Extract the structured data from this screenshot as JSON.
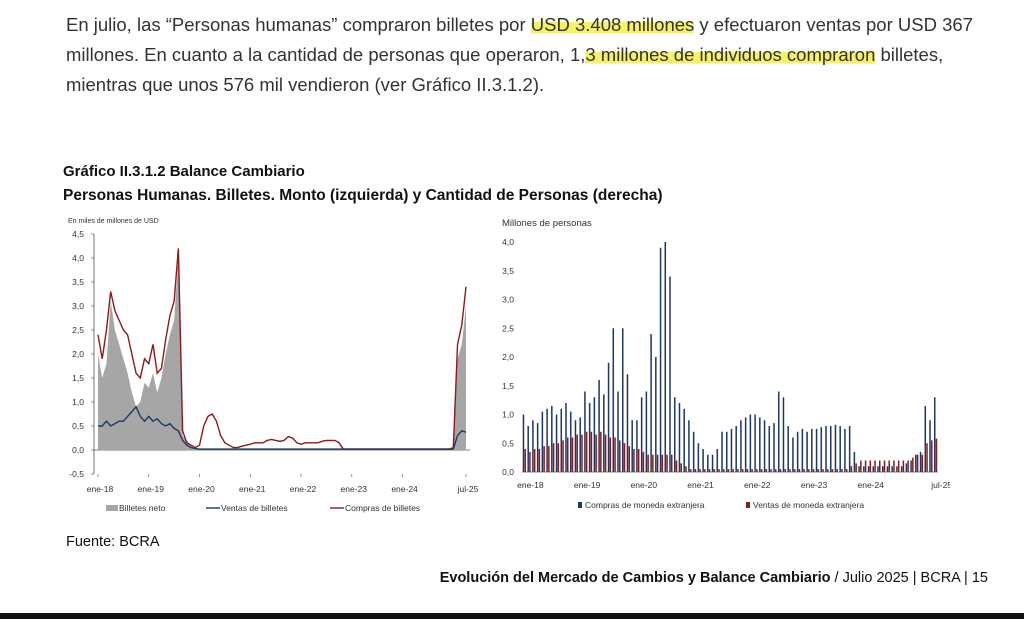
{
  "paragraph": {
    "part1": "En julio, las “Personas humanas” compraron billetes por ",
    "hl1": "USD 3.408 millones",
    "part2": " y efectuaron ventas por USD 367 millones. En cuanto a la cantidad de personas que operaron, 1,",
    "hl2": "3 millones de individuos compraron",
    "part3": " billetes, mientras que unos 576 mil vendieron (ver Gráfico II.3.1.2)."
  },
  "figure": {
    "title": "Gráfico II.3.1.2 Balance Cambiario",
    "subtitle": "Personas Humanas. Billetes. Monto (izquierda) y Cantidad de Personas (derecha)"
  },
  "source": "Fuente: BCRA",
  "footer": {
    "bold": "Evolución del Mercado de Cambios y Balance Cambiario",
    "rest": " / Julio 2025 | BCRA | 15"
  },
  "chart_data": [
    {
      "type": "area",
      "ylabel": "En miles de millones de USD",
      "ylim": [
        -0.5,
        4.5
      ],
      "yticks": [
        "4,5",
        "4,0",
        "3,5",
        "3,0",
        "2,5",
        "2,0",
        "1,5",
        "1,0",
        "0,5",
        "0,0",
        "-0,5"
      ],
      "x_ticks": [
        "ene-18",
        "ene-19",
        "ene-20",
        "ene-21",
        "ene-22",
        "ene-23",
        "ene-24",
        "jul-25"
      ],
      "colors": {
        "billetes_neto": "#a6a6a6",
        "ventas": "#1f3864",
        "compras": "#8b1a1a"
      },
      "series": [
        {
          "name": "Billetes neto",
          "values": [
            2.0,
            1.5,
            1.8,
            3.1,
            2.5,
            2.2,
            1.9,
            1.6,
            1.2,
            0.9,
            1.0,
            1.4,
            1.3,
            1.6,
            1.2,
            1.5,
            2.0,
            2.4,
            2.7,
            4.0,
            0.3,
            0.2,
            0.1,
            0.0,
            0.0,
            0.0,
            0.0,
            0.0,
            0.0,
            0.0,
            0.0,
            0.0,
            0.0,
            0.0,
            0.0,
            0.0,
            0.0,
            0.0,
            0.0,
            0.0,
            0.0,
            0.0,
            0.0,
            0.0,
            0.0,
            0.0,
            0.0,
            0.0,
            0.0,
            0.0,
            0.0,
            0.0,
            0.0,
            0.0,
            0.0,
            0.0,
            0.0,
            0.0,
            0.0,
            0.0,
            0.0,
            0.0,
            0.0,
            0.0,
            0.0,
            0.0,
            0.0,
            0.0,
            0.0,
            0.0,
            0.0,
            0.0,
            0.0,
            0.0,
            0.0,
            0.0,
            0.0,
            0.0,
            0.0,
            0.0,
            0.0,
            0.0,
            0.0,
            0.0,
            0.0,
            1.9,
            2.2,
            3.0
          ]
        },
        {
          "name": "Ventas de billetes",
          "values": [
            0.5,
            0.5,
            0.6,
            0.5,
            0.55,
            0.6,
            0.6,
            0.7,
            0.8,
            0.9,
            0.7,
            0.6,
            0.7,
            0.6,
            0.65,
            0.55,
            0.5,
            0.55,
            0.45,
            0.4,
            0.2,
            0.1,
            0.05,
            0.03,
            0.02,
            0.02,
            0.02,
            0.02,
            0.02,
            0.02,
            0.02,
            0.02,
            0.02,
            0.02,
            0.02,
            0.02,
            0.02,
            0.02,
            0.02,
            0.02,
            0.02,
            0.02,
            0.02,
            0.02,
            0.02,
            0.02,
            0.02,
            0.02,
            0.02,
            0.02,
            0.02,
            0.02,
            0.02,
            0.02,
            0.02,
            0.02,
            0.02,
            0.02,
            0.02,
            0.02,
            0.02,
            0.02,
            0.02,
            0.02,
            0.02,
            0.02,
            0.02,
            0.02,
            0.02,
            0.02,
            0.02,
            0.02,
            0.02,
            0.02,
            0.02,
            0.02,
            0.02,
            0.02,
            0.02,
            0.02,
            0.02,
            0.02,
            0.02,
            0.02,
            0.02,
            0.3,
            0.4,
            0.37
          ]
        },
        {
          "name": "Compras de billetes",
          "values": [
            2.4,
            1.9,
            2.5,
            3.3,
            2.9,
            2.7,
            2.5,
            2.4,
            2.0,
            1.6,
            1.5,
            1.9,
            1.8,
            2.2,
            1.6,
            1.7,
            2.3,
            2.8,
            3.1,
            4.2,
            0.4,
            0.15,
            0.1,
            0.05,
            0.1,
            0.5,
            0.7,
            0.75,
            0.6,
            0.3,
            0.15,
            0.1,
            0.05,
            0.05,
            0.08,
            0.1,
            0.12,
            0.15,
            0.15,
            0.15,
            0.2,
            0.22,
            0.2,
            0.18,
            0.2,
            0.28,
            0.25,
            0.15,
            0.12,
            0.15,
            0.15,
            0.15,
            0.15,
            0.18,
            0.2,
            0.2,
            0.2,
            0.15,
            0.02,
            0.02,
            0.02,
            0.02,
            0.02,
            0.02,
            0.02,
            0.02,
            0.02,
            0.02,
            0.02,
            0.02,
            0.02,
            0.02,
            0.02,
            0.02,
            0.02,
            0.02,
            0.02,
            0.02,
            0.02,
            0.02,
            0.02,
            0.02,
            0.02,
            0.02,
            0.05,
            2.2,
            2.6,
            3.4
          ]
        }
      ]
    },
    {
      "type": "bar",
      "ylabel": "Millones de personas",
      "ylim": [
        0,
        4.0
      ],
      "yticks": [
        "4,0",
        "3,5",
        "3,0",
        "2,5",
        "2,0",
        "1,5",
        "1,0",
        "0,5",
        "0,0"
      ],
      "x_ticks": [
        "ene-18",
        "ene-19",
        "ene-20",
        "ene-21",
        "ene-22",
        "ene-23",
        "ene-24",
        "jul-25"
      ],
      "colors": {
        "compras": "#1f3864",
        "ventas": "#8b1a1a"
      },
      "series": [
        {
          "name": "Compras de moneda extranjera",
          "values": [
            1.0,
            0.8,
            0.9,
            0.85,
            1.05,
            1.1,
            1.15,
            1.0,
            1.1,
            1.2,
            1.05,
            0.9,
            0.95,
            1.4,
            1.2,
            1.3,
            1.6,
            1.35,
            1.9,
            2.5,
            1.4,
            2.5,
            1.7,
            0.9,
            0.9,
            1.3,
            1.4,
            2.4,
            2.0,
            3.9,
            4.0,
            3.4,
            1.3,
            1.2,
            1.1,
            0.9,
            0.7,
            0.5,
            0.4,
            0.3,
            0.3,
            0.4,
            0.7,
            0.7,
            0.75,
            0.8,
            0.9,
            0.95,
            1.0,
            1.0,
            0.95,
            0.9,
            0.8,
            0.85,
            1.4,
            1.3,
            0.8,
            0.6,
            0.7,
            0.75,
            0.7,
            0.75,
            0.75,
            0.78,
            0.8,
            0.8,
            0.82,
            0.8,
            0.75,
            0.8,
            0.35,
            0.1,
            0.1,
            0.1,
            0.1,
            0.1,
            0.1,
            0.1,
            0.1,
            0.1,
            0.1,
            0.15,
            0.2,
            0.3,
            0.35,
            1.15,
            0.9,
            1.3
          ]
        },
        {
          "name": "Ventas de moneda extranjera",
          "values": [
            0.4,
            0.35,
            0.4,
            0.4,
            0.45,
            0.45,
            0.5,
            0.5,
            0.55,
            0.6,
            0.6,
            0.65,
            0.65,
            0.7,
            0.7,
            0.65,
            0.7,
            0.65,
            0.6,
            0.6,
            0.55,
            0.5,
            0.45,
            0.4,
            0.4,
            0.35,
            0.3,
            0.3,
            0.3,
            0.3,
            0.3,
            0.3,
            0.2,
            0.15,
            0.1,
            0.05,
            0.05,
            0.05,
            0.05,
            0.05,
            0.05,
            0.05,
            0.05,
            0.05,
            0.05,
            0.05,
            0.05,
            0.05,
            0.05,
            0.05,
            0.05,
            0.05,
            0.05,
            0.05,
            0.05,
            0.05,
            0.05,
            0.05,
            0.05,
            0.05,
            0.05,
            0.05,
            0.05,
            0.05,
            0.05,
            0.05,
            0.05,
            0.05,
            0.05,
            0.1,
            0.15,
            0.2,
            0.2,
            0.2,
            0.2,
            0.2,
            0.2,
            0.2,
            0.2,
            0.2,
            0.2,
            0.2,
            0.25,
            0.3,
            0.3,
            0.5,
            0.55,
            0.58
          ]
        }
      ]
    }
  ]
}
